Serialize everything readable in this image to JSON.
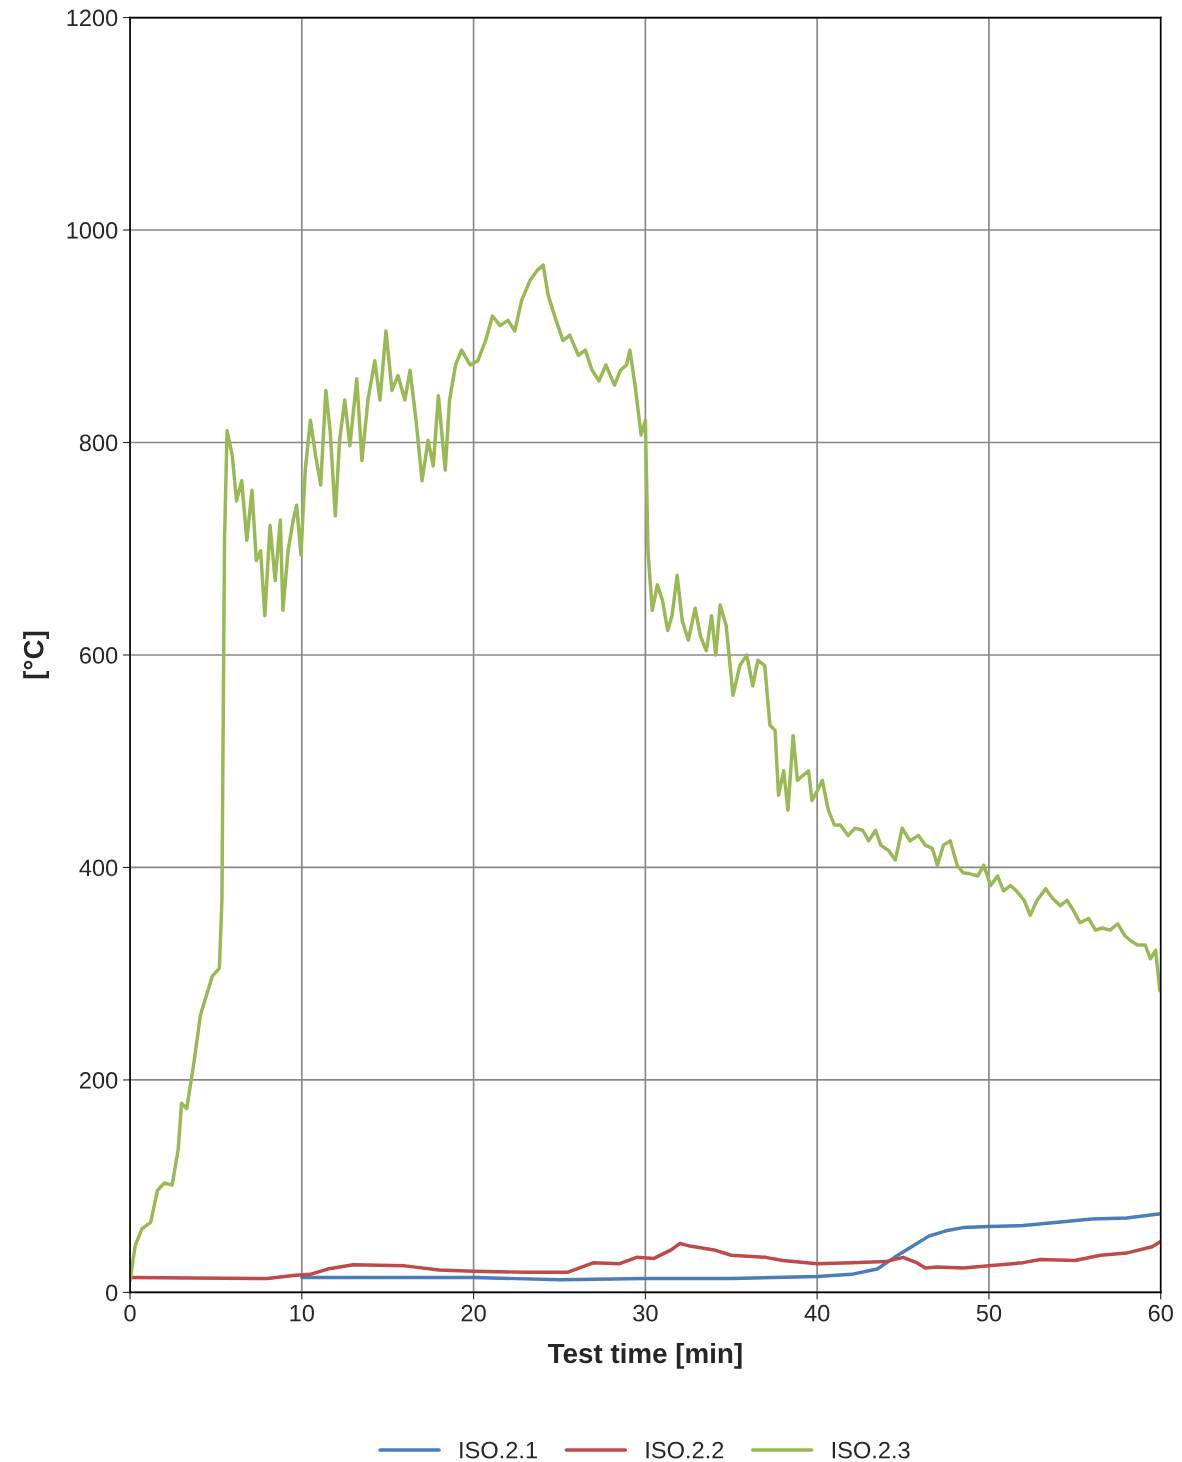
{
  "chart_data": {
    "type": "line",
    "xlabel": "Test time [min]",
    "ylabel": "[°C]",
    "xlim": [
      0,
      60
    ],
    "ylim": [
      0,
      1200
    ],
    "xticks": [
      0,
      10,
      20,
      30,
      40,
      50,
      60
    ],
    "yticks": [
      0,
      200,
      400,
      600,
      800,
      1000,
      1200
    ],
    "grid": true,
    "legend": "bottom",
    "marker": "none",
    "line_style": "solid",
    "series": [
      {
        "name": "ISO.2.1",
        "color": "#4a7ebb",
        "x": [
          10,
          20,
          25,
          30,
          35,
          40,
          42,
          43.5,
          44.5,
          45.5,
          46.5,
          47.5,
          48.5,
          50,
          52,
          54,
          56,
          58,
          60
        ],
        "values": [
          14,
          14,
          12,
          13,
          13,
          15,
          17,
          22,
          33,
          43,
          53,
          58,
          61,
          62,
          63,
          66,
          69,
          70,
          74
        ]
      },
      {
        "name": "ISO.2.2",
        "color": "#be4b48",
        "x": [
          0,
          8,
          9.5,
          10.5,
          11.5,
          13,
          16,
          18,
          20,
          23,
          25.5,
          27,
          28.5,
          29.5,
          30.5,
          31.5,
          32,
          32.5,
          34,
          35,
          37,
          38,
          40,
          42,
          44,
          45,
          45.8,
          46.3,
          47,
          48.5,
          50,
          52,
          53,
          55,
          56.5,
          58,
          59.5,
          60
        ],
        "values": [
          14,
          13,
          16,
          17,
          22,
          26,
          25,
          21,
          20,
          19,
          19,
          28,
          27,
          33,
          32,
          40,
          46,
          44,
          40,
          35,
          33,
          30,
          27,
          28,
          29,
          33,
          28,
          23,
          24,
          23,
          25,
          28,
          31,
          30,
          35,
          37,
          43,
          48
        ]
      },
      {
        "name": "ISO.2.3",
        "color": "#98b954",
        "x": [
          0,
          0.3,
          0.7,
          1.2,
          1.6,
          2.0,
          2.45,
          2.8,
          3.0,
          3.3,
          3.7,
          4.1,
          4.4,
          4.8,
          5.2,
          5.35,
          5.5,
          5.65,
          5.95,
          6.2,
          6.5,
          6.8,
          7.1,
          7.35,
          7.6,
          7.85,
          8.15,
          8.45,
          8.75,
          8.9,
          9.2,
          9.5,
          9.7,
          9.95,
          10.2,
          10.5,
          10.8,
          11.1,
          11.4,
          11.65,
          11.95,
          12.2,
          12.5,
          12.8,
          13.2,
          13.5,
          13.85,
          14.25,
          14.55,
          14.9,
          15.25,
          15.6,
          16.0,
          16.3,
          16.65,
          17.0,
          17.35,
          17.65,
          17.95,
          18.35,
          18.6,
          18.95,
          19.3,
          19.8,
          20.25,
          20.7,
          21.1,
          21.55,
          22.0,
          22.4,
          22.8,
          23.3,
          23.7,
          24.05,
          24.35,
          24.8,
          25.2,
          25.6,
          26.1,
          26.5,
          26.9,
          27.3,
          27.7,
          28.2,
          28.55,
          28.9,
          29.1,
          29.4,
          29.75,
          30.0,
          30.15,
          30.4,
          30.7,
          31.0,
          31.3,
          31.55,
          31.85,
          32.15,
          32.5,
          32.9,
          33.2,
          33.55,
          33.85,
          34.1,
          34.35,
          34.7,
          35.1,
          35.5,
          35.9,
          36.25,
          36.55,
          36.95,
          37.25,
          37.55,
          37.75,
          38.05,
          38.3,
          38.6,
          38.85,
          39.2,
          39.5,
          39.7,
          40.0,
          40.3,
          40.65,
          41.0,
          41.35,
          41.8,
          42.2,
          42.65,
          43.0,
          43.4,
          43.7,
          44.15,
          44.55,
          44.95,
          45.4,
          45.9,
          46.3,
          46.7,
          47.0,
          47.35,
          47.75,
          48.15,
          48.5,
          48.9,
          49.35,
          49.7,
          50.1,
          50.5,
          50.85,
          51.25,
          51.6,
          52.05,
          52.4,
          52.8,
          53.3,
          53.7,
          54.15,
          54.55,
          54.9,
          55.3,
          55.8,
          56.2,
          56.6,
          57.05,
          57.5,
          57.9,
          58.25,
          58.65,
          59.1,
          59.4,
          59.7,
          59.95
        ],
        "values": [
          11,
          44,
          60,
          66,
          96,
          103,
          101,
          134,
          178,
          173,
          214,
          261,
          277,
          298,
          305,
          369,
          708,
          811,
          788,
          745,
          764,
          708,
          755,
          689,
          698,
          637,
          722,
          670,
          727,
          642,
          698,
          727,
          741,
          694,
          774,
          821,
          788,
          760,
          849,
          811,
          731,
          802,
          840,
          797,
          860,
          783,
          840,
          877,
          840,
          905,
          849,
          863,
          840,
          868,
          821,
          764,
          802,
          778,
          844,
          774,
          840,
          873,
          887,
          873,
          877,
          896,
          919,
          910,
          915,
          905,
          934,
          953,
          962,
          967,
          938,
          915,
          896,
          901,
          882,
          887,
          868,
          858,
          873,
          854,
          868,
          873,
          887,
          854,
          807,
          821,
          698,
          642,
          666,
          651,
          623,
          637,
          675,
          632,
          614,
          644,
          618,
          604,
          637,
          600,
          647,
          628,
          562,
          590,
          600,
          571,
          595,
          590,
          534,
          529,
          468,
          491,
          454,
          524,
          482,
          487,
          491,
          463,
          472,
          482,
          454,
          440,
          440,
          430,
          437,
          435,
          425,
          435,
          421,
          416,
          407,
          437,
          425,
          430,
          421,
          418,
          402,
          421,
          425,
          402,
          395,
          394,
          392,
          402,
          383,
          392,
          378,
          383,
          378,
          369,
          355,
          369,
          380,
          371,
          364,
          369,
          360,
          348,
          352,
          341,
          343,
          341,
          347,
          336,
          331,
          327,
          327,
          314,
          322,
          284
        ]
      }
    ]
  }
}
